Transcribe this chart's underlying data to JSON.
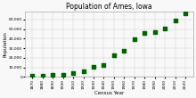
{
  "title": "Population of Ames, Iowa",
  "xlabel": "Census Year",
  "ylabel": "Population",
  "years": [
    1870,
    1880,
    1890,
    1900,
    1910,
    1920,
    1930,
    1940,
    1950,
    1960,
    1970,
    1980,
    1990,
    2000,
    2010,
    2020
  ],
  "population": [
    835,
    1276,
    2422,
    2422,
    4223,
    6270,
    10261,
    12555,
    22898,
    27003,
    39505,
    45775,
    47198,
    50731,
    58965,
    66258
  ],
  "marker_color": "#006400",
  "marker": "s",
  "marker_size": 2.5,
  "ylim": [
    0,
    68000
  ],
  "yticks": [
    0,
    10000,
    20000,
    30000,
    40000,
    50000,
    60000
  ],
  "ytick_labels": [
    "0",
    "10,000",
    "20,000",
    "30,000",
    "40,000",
    "50,000",
    "60,000"
  ],
  "xticks": [
    1870,
    1880,
    1890,
    1900,
    1910,
    1920,
    1930,
    1940,
    1950,
    1960,
    1970,
    1980,
    1990,
    2000,
    2010,
    2020
  ],
  "grid": true,
  "title_fontsize": 5.5,
  "axis_label_fontsize": 4.0,
  "tick_fontsize": 3.2,
  "bg_color": "#f8f8f8"
}
